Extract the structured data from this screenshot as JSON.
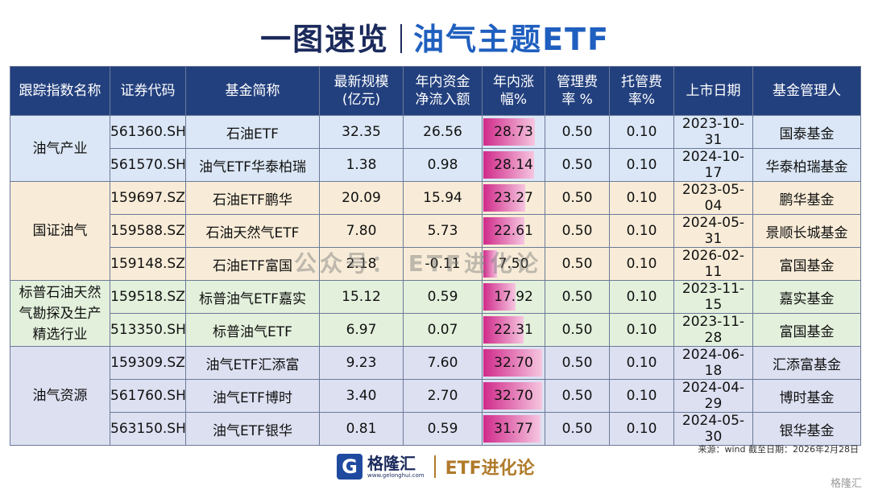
{
  "title": {
    "main": "一图速览",
    "sub": "油气主题ETF"
  },
  "table": {
    "headers": [
      [
        "跟踪指数名称"
      ],
      [
        "证券代码"
      ],
      [
        "基金简称"
      ],
      [
        "最新规模",
        "(亿元)"
      ],
      [
        "年内资金",
        "净流入额"
      ],
      [
        "年内涨",
        "幅%"
      ],
      [
        "管理费",
        "率 %"
      ],
      [
        "托管费",
        "率%"
      ],
      [
        "上市日期"
      ],
      [
        "基金管理人"
      ]
    ],
    "groups": [
      {
        "name": "油气产业",
        "rows": [
          [
            "561360.SH",
            "石油ETF",
            "32.35",
            "26.56",
            "28.73",
            "0.50",
            "0.10",
            "2023-10-31",
            "国泰基金"
          ],
          [
            "561570.SH",
            "油气ETF华泰柏瑞",
            "1.38",
            "0.98",
            "28.14",
            "0.50",
            "0.10",
            "2024-10-17",
            "华泰柏瑞基金"
          ]
        ]
      },
      {
        "name": "国证油气",
        "rows": [
          [
            "159697.SZ",
            "石油ETF鹏华",
            "20.09",
            "15.94",
            "23.27",
            "0.50",
            "0.10",
            "2023-05-04",
            "鹏华基金"
          ],
          [
            "159588.SZ",
            "石油天然气ETF",
            "7.80",
            "5.73",
            "22.61",
            "0.50",
            "0.10",
            "2024-05-31",
            "景顺长城基金"
          ],
          [
            "159148.SZ",
            "石油ETF富国",
            "2.18",
            "-0.11",
            "7.50",
            "0.50",
            "0.10",
            "2026-02-11",
            "富国基金"
          ]
        ]
      },
      {
        "name": "标普石油天然气勘探及生产精选行业",
        "rows": [
          [
            "159518.SZ",
            "标普油气ETF嘉实",
            "15.12",
            "0.59",
            "17.92",
            "0.50",
            "0.10",
            "2023-11-15",
            "嘉实基金"
          ],
          [
            "513350.SH",
            "标普油气ETF",
            "6.97",
            "0.07",
            "22.31",
            "0.50",
            "0.10",
            "2023-11-28",
            "富国基金"
          ]
        ]
      },
      {
        "name": "油气资源",
        "rows": [
          [
            "159309.SZ",
            "油气ETF汇添富",
            "9.23",
            "7.60",
            "32.70",
            "0.50",
            "0.10",
            "2024-06-18",
            "汇添富基金"
          ],
          [
            "561760.SH",
            "油气ETF博时",
            "3.40",
            "2.70",
            "32.70",
            "0.50",
            "0.10",
            "2024-04-29",
            "博时基金"
          ],
          [
            "563150.SH",
            "油气ETF银华",
            "0.81",
            "0.59",
            "31.77",
            "0.50",
            "0.10",
            "2024-05-30",
            "银华基金"
          ]
        ]
      }
    ]
  },
  "watermark": "公众号： ETF进化论",
  "footer": {
    "source": "来源：wind 截至日期：2026年2月28日",
    "logo": "格隆汇",
    "url": "www.gelonghui.com",
    "brand": "ETF进化论",
    "corner": "格隆汇"
  }
}
